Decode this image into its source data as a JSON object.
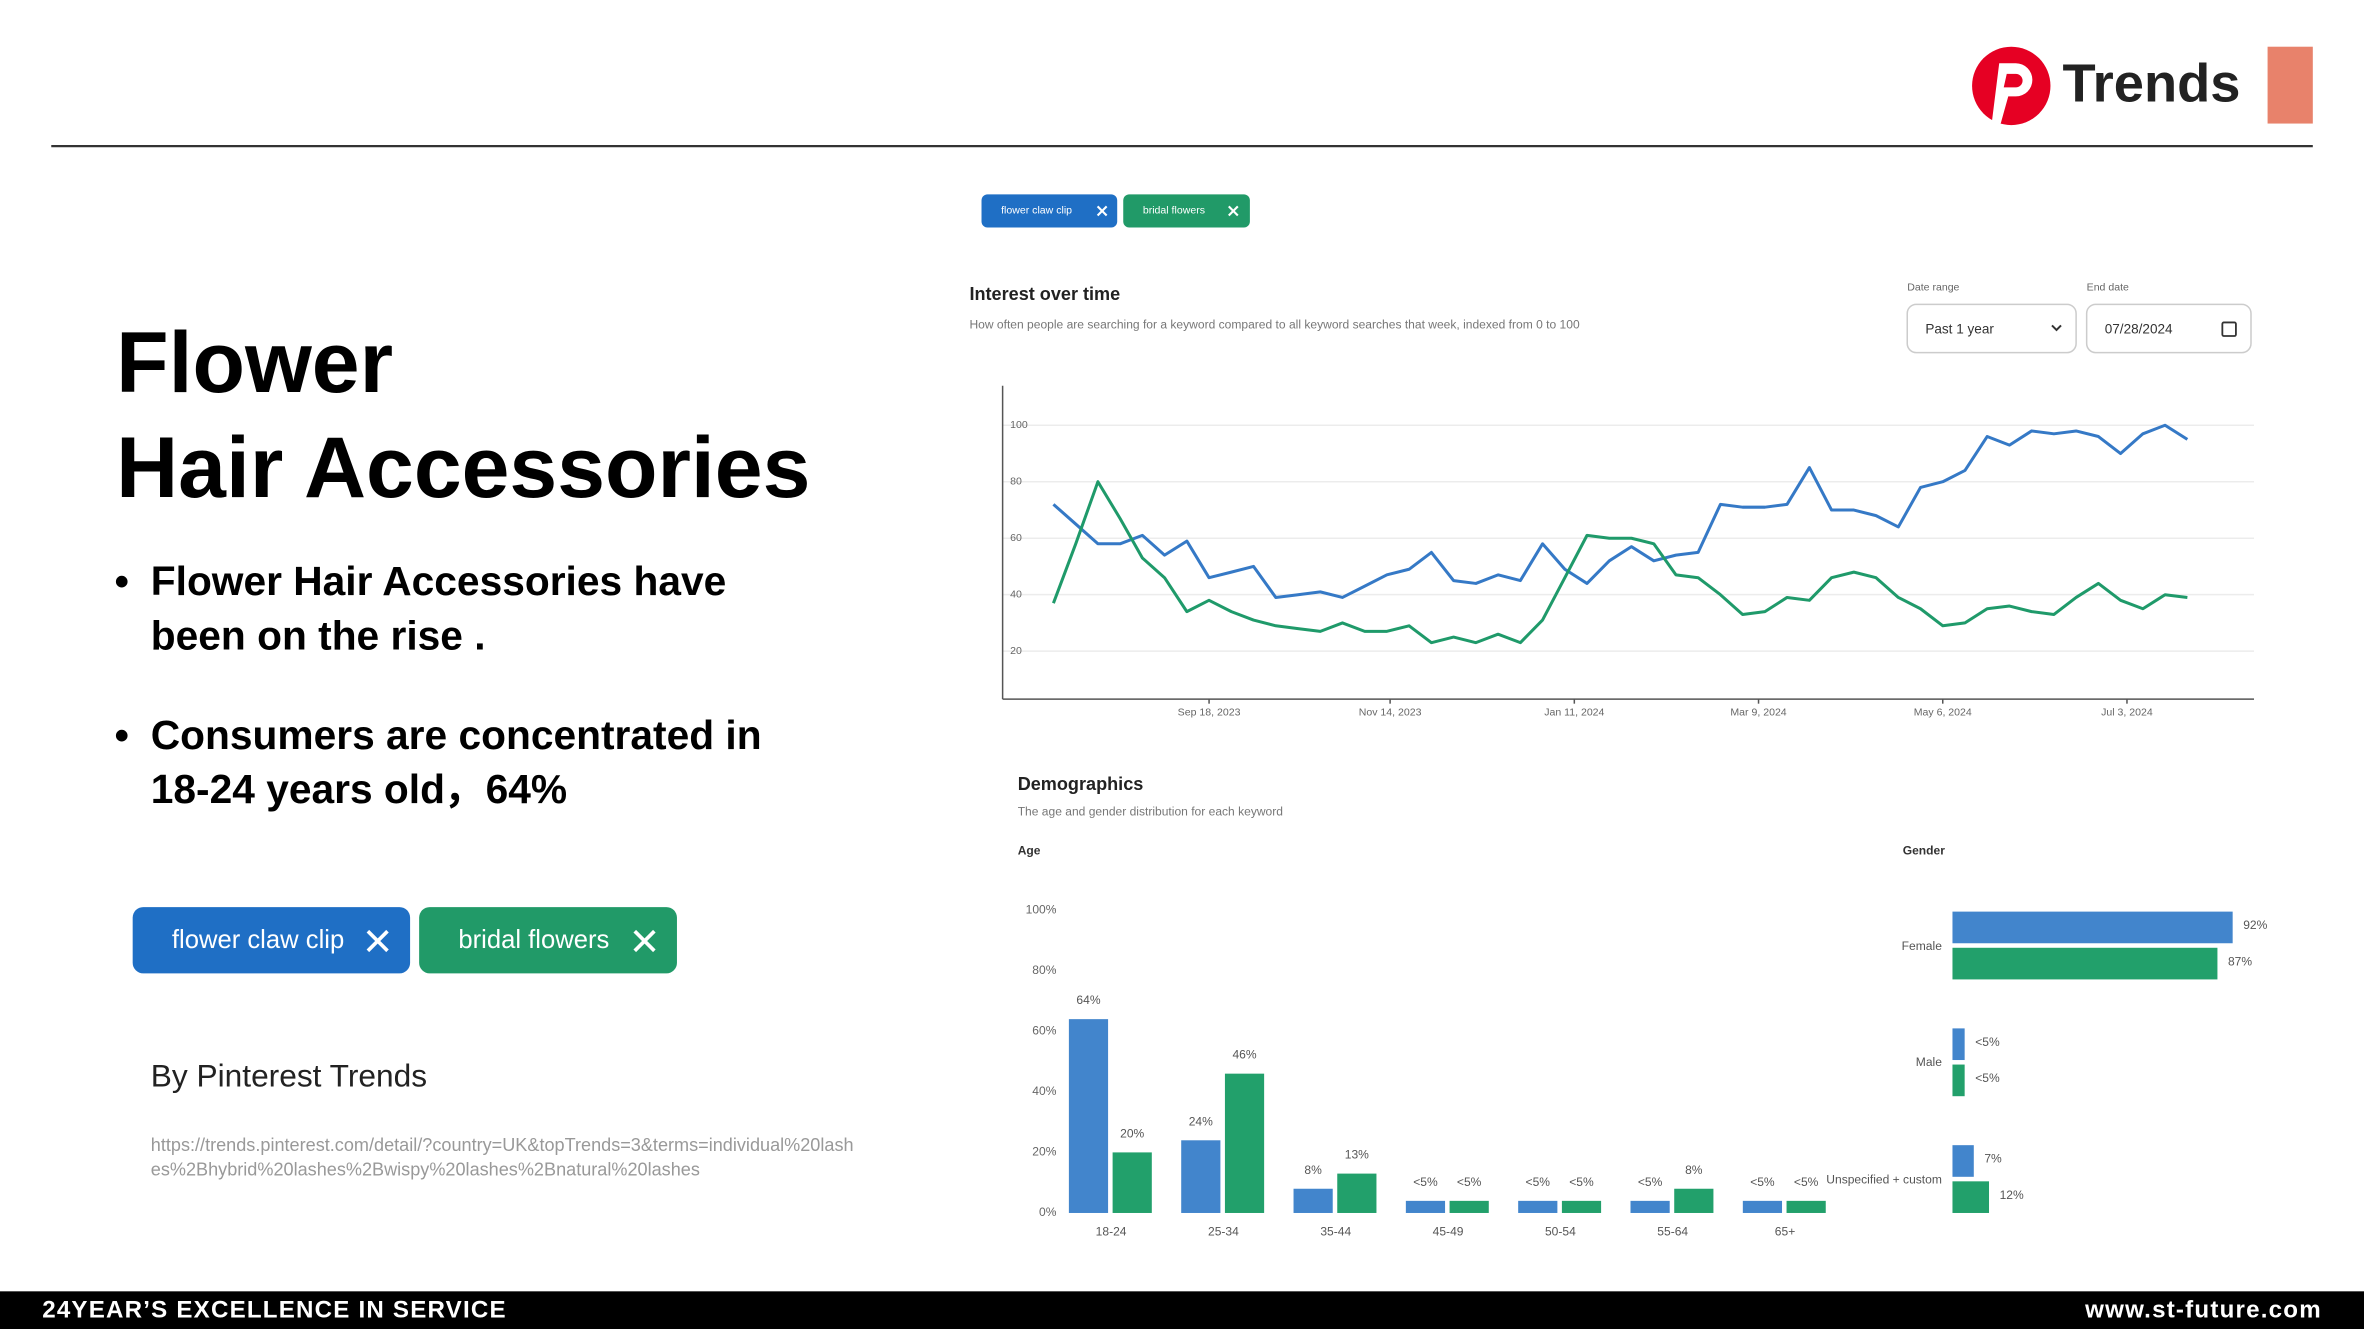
{
  "header": {
    "brand": "Trends"
  },
  "title_lines": [
    "Flower",
    "Hair Accessories"
  ],
  "bullets": [
    "Flower Hair Accessories have been on the rise .",
    "Consumers are concentrated in 18-24 years old，64%"
  ],
  "keywords": [
    "flower claw clip",
    "bridal flowers"
  ],
  "source": "By Pinterest Trends",
  "url": "https://trends.pinterest.com/detail/?country=UK&topTrends=3&terms=individual%20lashes%2Bhybrid%20lashes%2Bwispy%20lashes%2Bnatural%20lashes",
  "controls": {
    "date_range_label": "Date range",
    "date_range": "Past 1 year",
    "end_date_label": "End date",
    "end_date": "07/28/2024"
  },
  "demographics": {
    "title": "Demographics",
    "subtitle": "The age and gender distribution for each keyword"
  },
  "footer": {
    "left": "24YEAR’S EXCELLENCE IN SERVICE",
    "right": "www.st-future.com"
  },
  "chart_data": [
    {
      "type": "line",
      "title": "Interest over time",
      "subtitle": "How often people are searching for a keyword compared to all keyword searches that week, indexed from 0 to 100",
      "x": [
        "2023-07-31",
        "2023-08-07",
        "2023-08-14",
        "2023-08-21",
        "2023-08-28",
        "2023-09-04",
        "2023-09-11",
        "2023-09-18",
        "2023-09-25",
        "2023-10-02",
        "2023-10-09",
        "2023-10-16",
        "2023-10-23",
        "2023-10-30",
        "2023-11-06",
        "2023-11-13",
        "2023-11-20",
        "2023-11-27",
        "2023-12-04",
        "2023-12-11",
        "2023-12-18",
        "2023-12-25",
        "2024-01-01",
        "2024-01-08",
        "2024-01-15",
        "2024-01-22",
        "2024-01-29",
        "2024-02-05",
        "2024-02-12",
        "2024-02-19",
        "2024-02-26",
        "2024-03-04",
        "2024-03-11",
        "2024-03-18",
        "2024-03-25",
        "2024-04-01",
        "2024-04-08",
        "2024-04-15",
        "2024-04-22",
        "2024-04-29",
        "2024-05-06",
        "2024-05-13",
        "2024-05-20",
        "2024-05-27",
        "2024-06-03",
        "2024-06-10",
        "2024-06-17",
        "2024-06-24",
        "2024-07-01",
        "2024-07-08",
        "2024-07-15",
        "2024-07-22"
      ],
      "series": [
        {
          "name": "flower claw clip",
          "color": "#3579c6",
          "values": [
            72,
            65,
            58,
            58,
            61,
            54,
            59,
            46,
            48,
            50,
            39,
            40,
            41,
            39,
            43,
            47,
            49,
            55,
            45,
            44,
            47,
            45,
            58,
            49,
            44,
            52,
            57,
            52,
            54,
            55,
            72,
            71,
            71,
            72,
            85,
            70,
            70,
            68,
            64,
            78,
            80,
            84,
            96,
            93,
            98,
            97,
            98,
            96,
            90,
            97,
            100,
            95
          ]
        },
        {
          "name": "bridal flowers",
          "color": "#1f9a6a",
          "values": [
            37,
            58,
            80,
            67,
            53,
            46,
            34,
            38,
            34,
            31,
            29,
            28,
            27,
            30,
            27,
            27,
            29,
            23,
            25,
            23,
            26,
            23,
            31,
            46,
            61,
            60,
            60,
            58,
            47,
            46,
            40,
            33,
            34,
            39,
            38,
            46,
            48,
            46,
            39,
            35,
            29,
            30,
            35,
            36,
            34,
            33,
            39,
            44,
            38,
            35,
            40,
            39
          ]
        }
      ],
      "xlim": [
        "2023-07-15",
        "2024-08-12"
      ],
      "xticks": [
        {
          "value": "2023-09-18",
          "label": "Sep 18, 2023"
        },
        {
          "value": "2023-11-14",
          "label": "Nov 14, 2023"
        },
        {
          "value": "2024-01-11",
          "label": "Jan 11, 2024"
        },
        {
          "value": "2024-03-09",
          "label": "Mar 9, 2024"
        },
        {
          "value": "2024-05-06",
          "label": "May 6, 2024"
        },
        {
          "value": "2024-07-03",
          "label": "Jul 3, 2024"
        }
      ],
      "ylim": [
        3,
        114
      ],
      "yticks": [
        20,
        40,
        60,
        80,
        100
      ],
      "grid": true
    },
    {
      "type": "bar",
      "title": "Age",
      "categories": [
        "18-24",
        "25-34",
        "35-44",
        "45-49",
        "50-54",
        "55-64",
        "65+"
      ],
      "series": [
        {
          "name": "flower claw clip",
          "color": "#4285cc",
          "values": [
            64,
            24,
            8,
            4,
            4,
            4,
            4
          ],
          "value_labels": [
            "64%",
            "24%",
            "8%",
            "<5%",
            "<5%",
            "<5%",
            "<5%"
          ]
        },
        {
          "name": "bridal flowers",
          "color": "#22a06b",
          "values": [
            20,
            46,
            13,
            4,
            4,
            8,
            4
          ],
          "value_labels": [
            "20%",
            "46%",
            "13%",
            "<5%",
            "<5%",
            "8%",
            "<5%"
          ]
        }
      ],
      "ylim": [
        0,
        100
      ],
      "yticks": [
        {
          "value": 0,
          "label": "0%"
        },
        {
          "value": 20,
          "label": "20%"
        },
        {
          "value": 40,
          "label": "40%"
        },
        {
          "value": 60,
          "label": "60%"
        },
        {
          "value": 80,
          "label": "80%"
        },
        {
          "value": 100,
          "label": "100%"
        }
      ]
    },
    {
      "type": "barh",
      "title": "Gender",
      "categories": [
        "Female",
        "Male",
        "Unspecified + custom"
      ],
      "series": [
        {
          "name": "flower claw clip",
          "color": "#4285cc",
          "values": [
            92,
            4,
            7
          ],
          "value_labels": [
            "92%",
            "<5%",
            "7%"
          ]
        },
        {
          "name": "bridal flowers",
          "color": "#22a06b",
          "values": [
            87,
            4,
            12
          ],
          "value_labels": [
            "87%",
            "<5%",
            "12%"
          ]
        }
      ],
      "xlim": [
        0,
        100
      ]
    }
  ]
}
